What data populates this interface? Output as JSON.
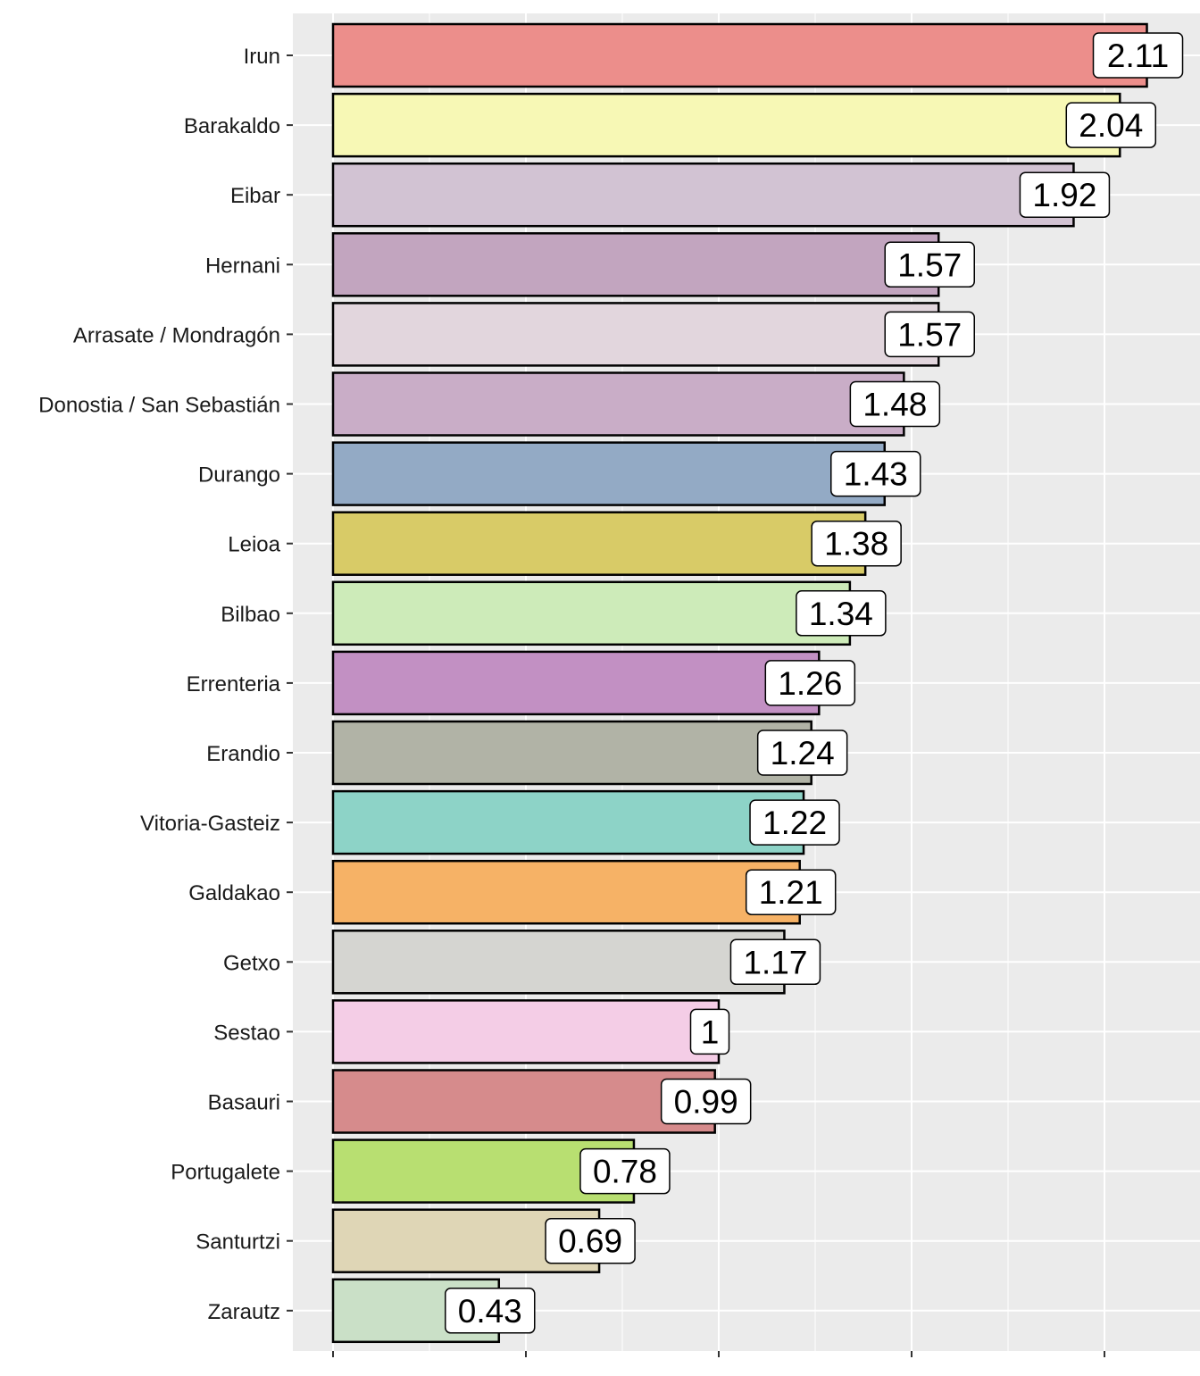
{
  "chart_data": {
    "type": "bar",
    "orientation": "horizontal",
    "title": "",
    "xlabel": "",
    "ylabel": "",
    "xlim": [
      0,
      2.2
    ],
    "x_major_ticks": [
      0,
      0.5,
      1,
      1.5,
      2
    ],
    "x_tick_labels_shown": false,
    "grid": true,
    "legend": "none",
    "categories": [
      "Irun",
      "Barakaldo",
      "Eibar",
      "Hernani",
      "Arrasate / Mondragón",
      "Donostia / San Sebastián",
      "Durango",
      "Leioa",
      "Bilbao",
      "Errenteria",
      "Erandio",
      "Vitoria-Gasteiz",
      "Galdakao",
      "Getxo",
      "Sestao",
      "Basauri",
      "Portugalete",
      "Santurtzi",
      "Zarautz"
    ],
    "values": [
      2.11,
      2.04,
      1.92,
      1.57,
      1.57,
      1.48,
      1.43,
      1.38,
      1.34,
      1.26,
      1.24,
      1.22,
      1.21,
      1.17,
      1,
      0.99,
      0.78,
      0.69,
      0.43
    ],
    "data_labels": [
      "2.11",
      "2.04",
      "1.92",
      "1.57",
      "1.57",
      "1.48",
      "1.43",
      "1.38",
      "1.34",
      "1.26",
      "1.24",
      "1.22",
      "1.21",
      "1.17",
      "1",
      "0.99",
      "0.78",
      "0.69",
      "0.43"
    ],
    "colors": [
      "#ec8e8b",
      "#f7f8b5",
      "#d2c3d3",
      "#c2a5bf",
      "#e2d6dd",
      "#c9adc7",
      "#93aac5",
      "#d8cb67",
      "#cdebb9",
      "#c290c3",
      "#b1b3a6",
      "#8dd3c7",
      "#f6b266",
      "#d5d5d1",
      "#f4cde6",
      "#d68b8c",
      "#b8df71",
      "#dfd6b6",
      "#cae0c7"
    ]
  }
}
